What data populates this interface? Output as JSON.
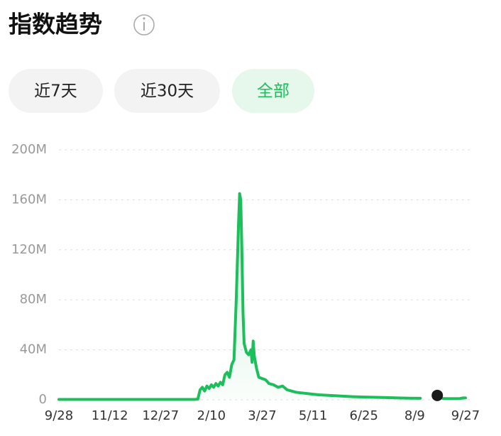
{
  "tabs": [
    "近7天",
    "近30天",
    "全部"
  ],
  "chart_data": {
    "type": "line",
    "title": "指数趋势",
    "x": [
      0,
      10,
      20,
      30,
      40,
      50,
      60,
      70,
      80,
      90,
      100,
      110,
      120,
      123,
      125,
      127,
      129,
      131,
      133,
      135,
      137,
      139,
      141,
      143,
      145,
      147,
      149,
      151,
      153,
      155,
      157,
      159,
      160,
      161,
      162,
      163,
      164,
      166,
      168,
      170,
      171,
      172,
      173,
      175,
      177,
      180,
      183,
      186,
      190,
      194,
      198,
      202,
      206,
      210,
      215,
      220,
      225,
      230,
      240,
      250,
      260,
      270,
      280,
      290,
      300,
      310,
      320,
      325,
      340,
      345,
      350,
      355,
      358,
      360
    ],
    "series": [
      {
        "color": "#1dbf5c",
        "values": [
          300000,
          300000,
          300000,
          300000,
          300000,
          300000,
          300000,
          300000,
          300000,
          300000,
          300000,
          300000,
          300000,
          500000,
          8000000,
          10000000,
          7000000,
          11000000,
          9000000,
          12000000,
          10000000,
          13000000,
          11000000,
          14000000,
          12000000,
          20000000,
          22000000,
          18000000,
          28000000,
          32000000,
          80000000,
          140000000,
          165000000,
          160000000,
          120000000,
          70000000,
          45000000,
          38000000,
          36000000,
          40000000,
          30000000,
          47000000,
          35000000,
          25000000,
          18000000,
          17000000,
          16000000,
          13000000,
          12000000,
          10000000,
          11000000,
          8000000,
          7000000,
          6000000,
          5500000,
          5000000,
          4500000,
          4000000,
          3500000,
          3000000,
          2500000,
          2200000,
          2000000,
          1800000,
          1500000,
          1300000,
          1200000,
          null,
          1000000,
          900000,
          900000,
          1000000,
          1500000,
          1500000
        ]
      }
    ],
    "highlight": {
      "x": 335,
      "y": 3500000,
      "color": "#1a1a1a"
    },
    "xlim": [
      0,
      360
    ],
    "xticks": [
      {
        "value": 0,
        "label": "9/28"
      },
      {
        "value": 45,
        "label": "11/12"
      },
      {
        "value": 90,
        "label": "12/27"
      },
      {
        "value": 135,
        "label": "2/10"
      },
      {
        "value": 180,
        "label": "3/27"
      },
      {
        "value": 225,
        "label": "5/11"
      },
      {
        "value": 270,
        "label": "6/25"
      },
      {
        "value": 315,
        "label": "8/9"
      },
      {
        "value": 360,
        "label": "9/27"
      }
    ],
    "ylim": [
      0,
      200000000
    ],
    "yticks": [
      0,
      {
        "value": 40000000,
        "label": "40M"
      },
      {
        "value": 80000000,
        "label": "80M"
      },
      {
        "value": 120000000,
        "label": "120M"
      },
      {
        "value": 160000000,
        "label": "160M"
      },
      {
        "value": 200000000,
        "label": "200M"
      }
    ],
    "grid": true
  }
}
